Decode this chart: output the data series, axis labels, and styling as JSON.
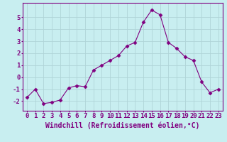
{
  "x": [
    0,
    1,
    2,
    3,
    4,
    5,
    6,
    7,
    8,
    9,
    10,
    11,
    12,
    13,
    14,
    15,
    16,
    17,
    18,
    19,
    20,
    21,
    22,
    23
  ],
  "y": [
    -1.7,
    -1.0,
    -2.2,
    -2.1,
    -1.9,
    -0.9,
    -0.7,
    -0.8,
    0.6,
    1.0,
    1.4,
    1.8,
    2.6,
    2.9,
    4.6,
    5.6,
    5.2,
    2.9,
    2.4,
    1.7,
    1.4,
    -0.4,
    -1.3,
    -1.0
  ],
  "line_color": "#800080",
  "marker": "D",
  "marker_size": 2.5,
  "bg_color": "#c8eef0",
  "grid_color": "#b0d4d8",
  "axis_color": "#800080",
  "tick_color": "#800080",
  "xlabel": "Windchill (Refroidissement éolien,°C)",
  "ylim": [
    -2.8,
    6.2
  ],
  "xlim": [
    -0.5,
    23.5
  ],
  "yticks": [
    -2,
    -1,
    0,
    1,
    2,
    3,
    4,
    5
  ],
  "xtick_labels": [
    "0",
    "1",
    "2",
    "3",
    "4",
    "5",
    "6",
    "7",
    "8",
    "9",
    "10",
    "11",
    "12",
    "13",
    "14",
    "15",
    "16",
    "17",
    "18",
    "19",
    "20",
    "21",
    "22",
    "23"
  ],
  "font_size": 6.5,
  "xlabel_fontsize": 7.0
}
